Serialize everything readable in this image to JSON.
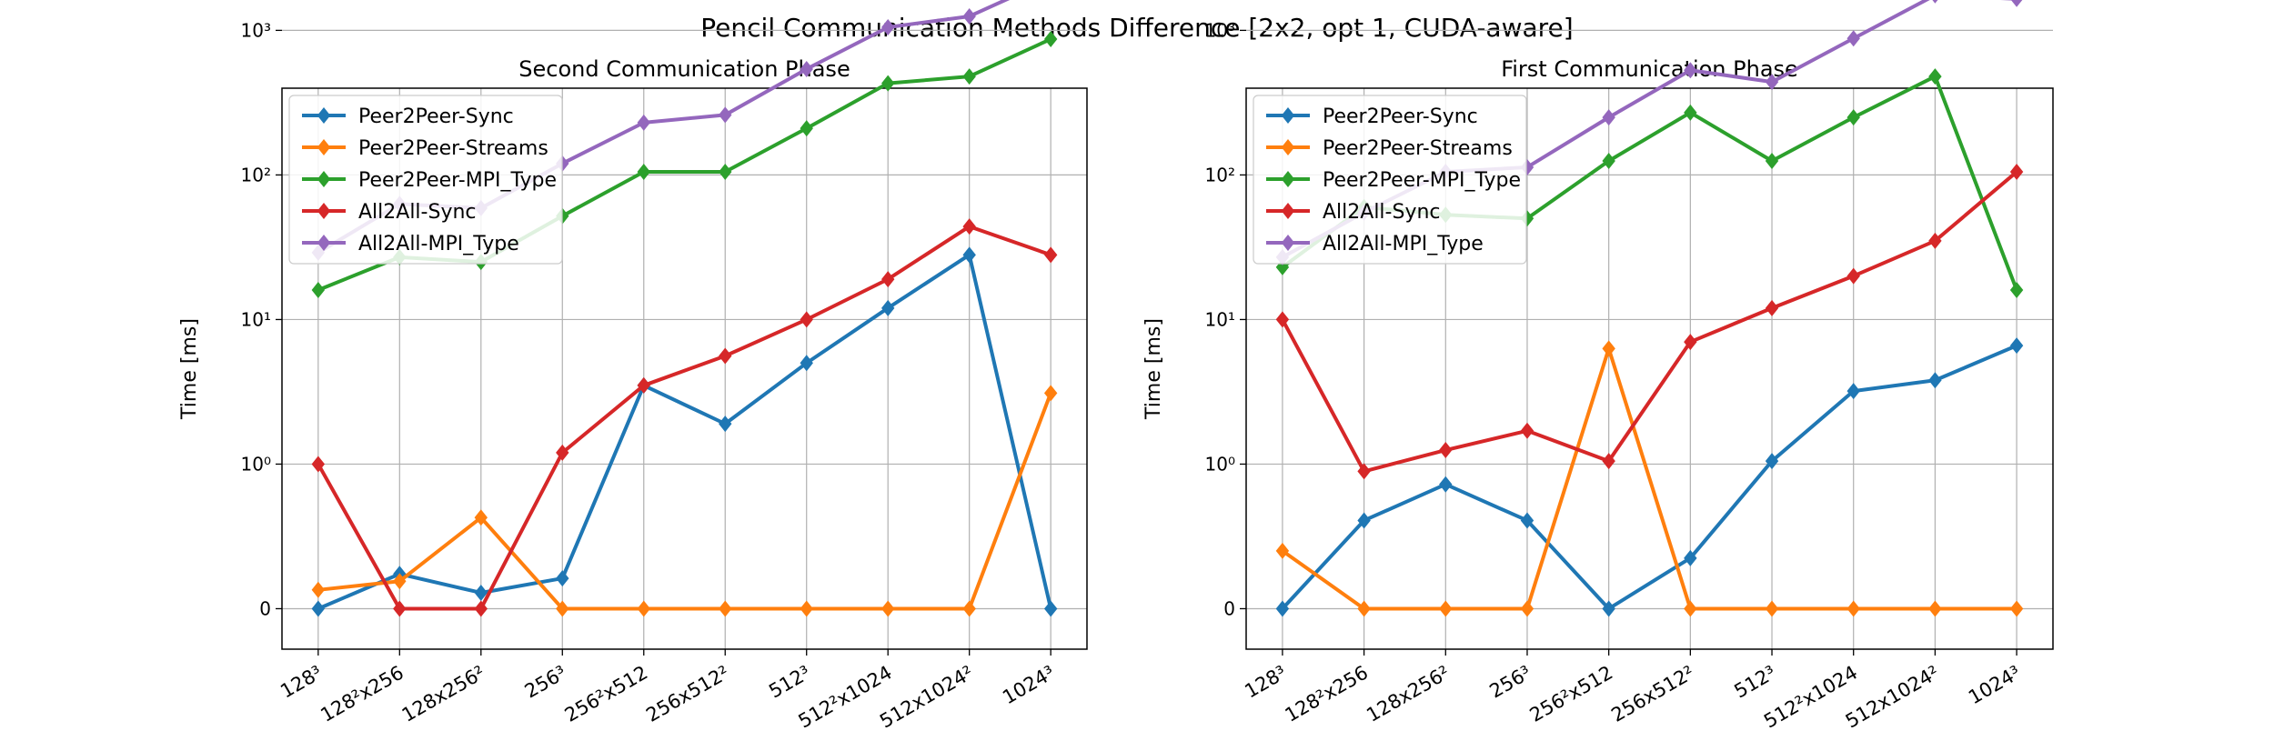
{
  "suptitle": "Pencil Communication Methods Difference [2x2, opt 1, CUDA-aware]",
  "chart_data": [
    {
      "type": "line",
      "title": "Second Communication Phase",
      "xlabel": "",
      "ylabel": "Time [ms]",
      "yscale": "symlog",
      "grid": true,
      "legend_position": "top-left",
      "categories": [
        "128³",
        "128²x256",
        "128x256²",
        "256³",
        "256²x512",
        "256x512²",
        "512³",
        "512²x1024",
        "512x1024²",
        "1024³"
      ],
      "yticks": [
        "0",
        "10⁰",
        "10¹",
        "10²",
        "10³"
      ],
      "series": [
        {
          "name": "Peer2Peer-Sync",
          "color": "#1f77b4",
          "values": [
            0.0,
            0.24,
            0.11,
            0.21,
            3.5,
            1.9,
            5.0,
            12.0,
            28.0,
            0.0
          ]
        },
        {
          "name": "Peer2Peer-Streams",
          "color": "#ff7f0e",
          "values": [
            0.13,
            0.19,
            0.63,
            0.0,
            0.0,
            0.0,
            0.0,
            0.0,
            0.0,
            3.1
          ]
        },
        {
          "name": "Peer2Peer-MPI_Type",
          "color": "#2ca02c",
          "values": [
            16.0,
            27.0,
            25.0,
            52.0,
            105.0,
            105.0,
            210.0,
            430.0,
            480.0,
            870.0
          ]
        },
        {
          "name": "All2All-Sync",
          "color": "#d62728",
          "values": [
            1.0,
            0.0,
            0.0,
            1.2,
            3.5,
            5.6,
            10.0,
            19.0,
            44.0,
            28.0
          ]
        },
        {
          "name": "All2All-MPI_Type",
          "color": "#9467bd",
          "values": [
            29.0,
            63.0,
            59.0,
            120.0,
            230.0,
            260.0,
            540.0,
            1050.0,
            1250.0,
            2250.0
          ]
        }
      ]
    },
    {
      "type": "line",
      "title": "First Communication Phase",
      "xlabel": "",
      "ylabel": "Time [ms]",
      "yscale": "symlog",
      "grid": true,
      "legend_position": "top-left",
      "categories": [
        "128³",
        "128²x256",
        "128x256²",
        "256³",
        "256²x512",
        "256x512²",
        "512³",
        "512²x1024",
        "512x1024²",
        "1024³"
      ],
      "yticks": [
        "0",
        "10⁰",
        "10¹",
        "10²",
        "10³"
      ],
      "series": [
        {
          "name": "Peer2Peer-Sync",
          "color": "#1f77b4",
          "values": [
            0.0,
            0.61,
            0.86,
            0.61,
            0.0,
            0.35,
            1.05,
            3.2,
            3.8,
            6.6
          ]
        },
        {
          "name": "Peer2Peer-Streams",
          "color": "#ff7f0e",
          "values": [
            0.4,
            0.0,
            0.0,
            0.0,
            6.3,
            0.0,
            0.0,
            0.0,
            0.0,
            0.0
          ]
        },
        {
          "name": "Peer2Peer-MPI_Type",
          "color": "#2ca02c",
          "values": [
            23.0,
            60.0,
            53.0,
            50.0,
            125.0,
            270.0,
            125.0,
            250.0,
            480.0,
            16.0
          ]
        },
        {
          "name": "All2All-Sync",
          "color": "#d62728",
          "values": [
            10.0,
            0.95,
            1.25,
            1.7,
            1.05,
            7.0,
            12.0,
            20.0,
            35.0,
            105.0
          ]
        },
        {
          "name": "All2All-MPI_Type",
          "color": "#9467bd",
          "values": [
            27.0,
            55.0,
            105.0,
            113.0,
            250.0,
            530.0,
            440.0,
            880.0,
            1750.0,
            1650.0
          ]
        }
      ]
    }
  ]
}
